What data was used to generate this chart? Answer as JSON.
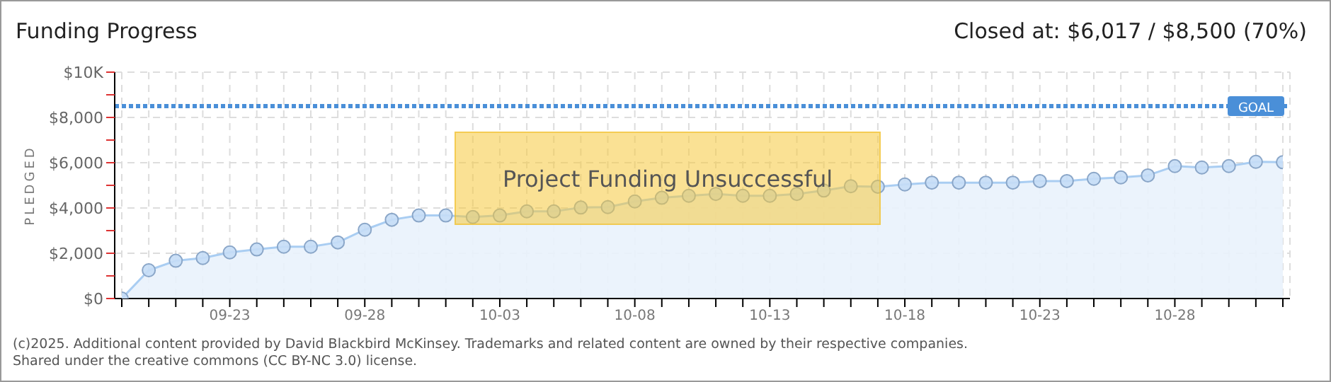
{
  "chart_data": {
    "type": "area",
    "title": "Funding Progress",
    "subtitle": "Closed at: $6,017 / $8,500 (70%)",
    "ylabel": "PLEDGED",
    "categories": [
      null,
      null,
      null,
      null,
      "09-23",
      null,
      null,
      null,
      null,
      "09-28",
      null,
      null,
      null,
      null,
      "10-03",
      null,
      null,
      null,
      null,
      "10-08",
      null,
      null,
      null,
      null,
      "10-13",
      null,
      null,
      null,
      null,
      "10-18",
      null,
      null,
      null,
      null,
      "10-23",
      null,
      null,
      null,
      null,
      "10-28",
      null,
      null,
      null,
      null
    ],
    "series": [
      {
        "color": "#a9cdf2",
        "values": [
          0,
          1250,
          1670,
          1790,
          2040,
          2170,
          2290,
          2290,
          2480,
          3040,
          3480,
          3670,
          3670,
          3600,
          3670,
          3850,
          3850,
          4020,
          4040,
          4290,
          4450,
          4540,
          4620,
          4540,
          4540,
          4620,
          4770,
          4960,
          4940,
          5040,
          5120,
          5120,
          5120,
          5120,
          5190,
          5190,
          5290,
          5350,
          5440,
          5850,
          5790,
          5850,
          6040,
          6020
        ]
      }
    ],
    "ylim": [
      0,
      10000
    ],
    "yticks": [
      {
        "value": 0,
        "label": "$0"
      },
      {
        "value": 1000,
        "label": null
      },
      {
        "value": 2000,
        "label": "$2,000"
      },
      {
        "value": 3000,
        "label": null
      },
      {
        "value": 4000,
        "label": "$4,000"
      },
      {
        "value": 5000,
        "label": null
      },
      {
        "value": 6000,
        "label": "$6,000"
      },
      {
        "value": 7000,
        "label": null
      },
      {
        "value": 8000,
        "label": "$8,000"
      },
      {
        "value": 9000,
        "label": null
      },
      {
        "value": 10000,
        "label": "$10K"
      }
    ],
    "ref_lines": [
      {
        "axis": "y",
        "value": 8500,
        "label": "GOAL",
        "color": "#4a8fd8",
        "line_style": "dotted"
      }
    ],
    "grid": true,
    "marker": "circle",
    "legend": false,
    "annotations": [
      "Project Funding Unsuccessful",
      "(c)2025. Additional content provided by David Blackbird McKinsey. Trademarks and related content are owned by their respective companies.",
      "Shared under the creative commons (CC BY-NC 3.0) license."
    ]
  }
}
